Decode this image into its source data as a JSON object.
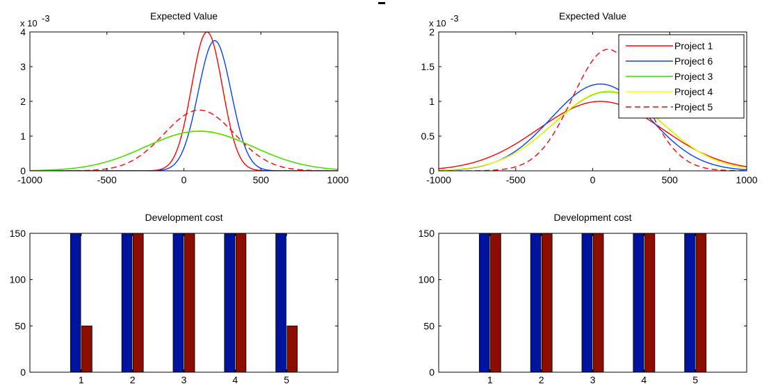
{
  "chart_data": [
    {
      "id": "ev-left",
      "type": "line",
      "title": "Expected Value",
      "xlabel": "",
      "ylabel": "",
      "xlim": [
        -1000,
        1000
      ],
      "ylim": [
        0,
        4
      ],
      "y_scale_label": "x 10",
      "y_scale_exponent": "-3",
      "xticks": [
        -1000,
        -500,
        0,
        500,
        1000
      ],
      "yticks": [
        0,
        1,
        2,
        3,
        4
      ],
      "grid": false,
      "series": [
        {
          "color": "#ff0000",
          "dash": "",
          "mean": 150,
          "sd": 100,
          "peak": 4.0
        },
        {
          "color": "#0040ff",
          "dash": "",
          "mean": 200,
          "sd": 107,
          "peak": 3.75
        },
        {
          "color": "#ff0000",
          "dash": "8,5",
          "mean": 100,
          "sd": 230,
          "peak": 1.75
        },
        {
          "color": "#ffff00",
          "dash": "",
          "mean": 100,
          "sd": 350,
          "peak": 1.15
        },
        {
          "color": "#33dd00",
          "dash": "",
          "mean": 100,
          "sd": 350,
          "peak": 1.14
        }
      ]
    },
    {
      "id": "ev-right",
      "type": "line",
      "title": "Expected Value",
      "xlabel": "",
      "ylabel": "",
      "xlim": [
        -1000,
        1000
      ],
      "ylim": [
        0,
        2
      ],
      "y_scale_label": "x 10",
      "y_scale_exponent": "-3",
      "xticks": [
        -1000,
        -500,
        0,
        500,
        1000
      ],
      "yticks": [
        0,
        0.5,
        1,
        1.5,
        2
      ],
      "grid": false,
      "legend_position": "top-right",
      "series": [
        {
          "name": "Project 1",
          "color": "#ff0000",
          "dash": "",
          "mean": 50,
          "sd": 400,
          "peak": 1.0
        },
        {
          "name": "Project 6",
          "color": "#0040ff",
          "dash": "",
          "mean": 50,
          "sd": 320,
          "peak": 1.25
        },
        {
          "name": "Project 3",
          "color": "#33dd00",
          "dash": "",
          "mean": 100,
          "sd": 350,
          "peak": 1.14
        },
        {
          "name": "Project 4",
          "color": "#ffff00",
          "dash": "",
          "mean": 100,
          "sd": 350,
          "peak": 1.15
        },
        {
          "name": "Project 5",
          "color": "#ff0000",
          "dash": "8,5",
          "mean": 100,
          "sd": 230,
          "peak": 1.75
        }
      ]
    },
    {
      "id": "cost-left",
      "type": "bar",
      "title": "Development cost",
      "xlabel": "",
      "ylabel": "",
      "categories": [
        "1",
        "2",
        "3",
        "4",
        "5"
      ],
      "ylim": [
        0,
        150
      ],
      "yticks": [
        0,
        50,
        100,
        150
      ],
      "xlim": [
        0,
        6
      ],
      "grid": false,
      "series": [
        {
          "color": "#00139c",
          "values": [
            150,
            150,
            150,
            150,
            150
          ]
        },
        {
          "color": "#8b0d00",
          "values": [
            50,
            150,
            150,
            150,
            50
          ]
        }
      ]
    },
    {
      "id": "cost-right",
      "type": "bar",
      "title": "Development cost",
      "xlabel": "",
      "ylabel": "",
      "categories": [
        "1",
        "2",
        "3",
        "4",
        "5"
      ],
      "ylim": [
        0,
        150
      ],
      "yticks": [
        0,
        50,
        100,
        150
      ],
      "xlim": [
        0,
        6
      ],
      "grid": false,
      "series": [
        {
          "color": "#00139c",
          "values": [
            150,
            150,
            150,
            150,
            150
          ]
        },
        {
          "color": "#8b0d00",
          "values": [
            150,
            150,
            150,
            150,
            150
          ]
        }
      ]
    }
  ]
}
